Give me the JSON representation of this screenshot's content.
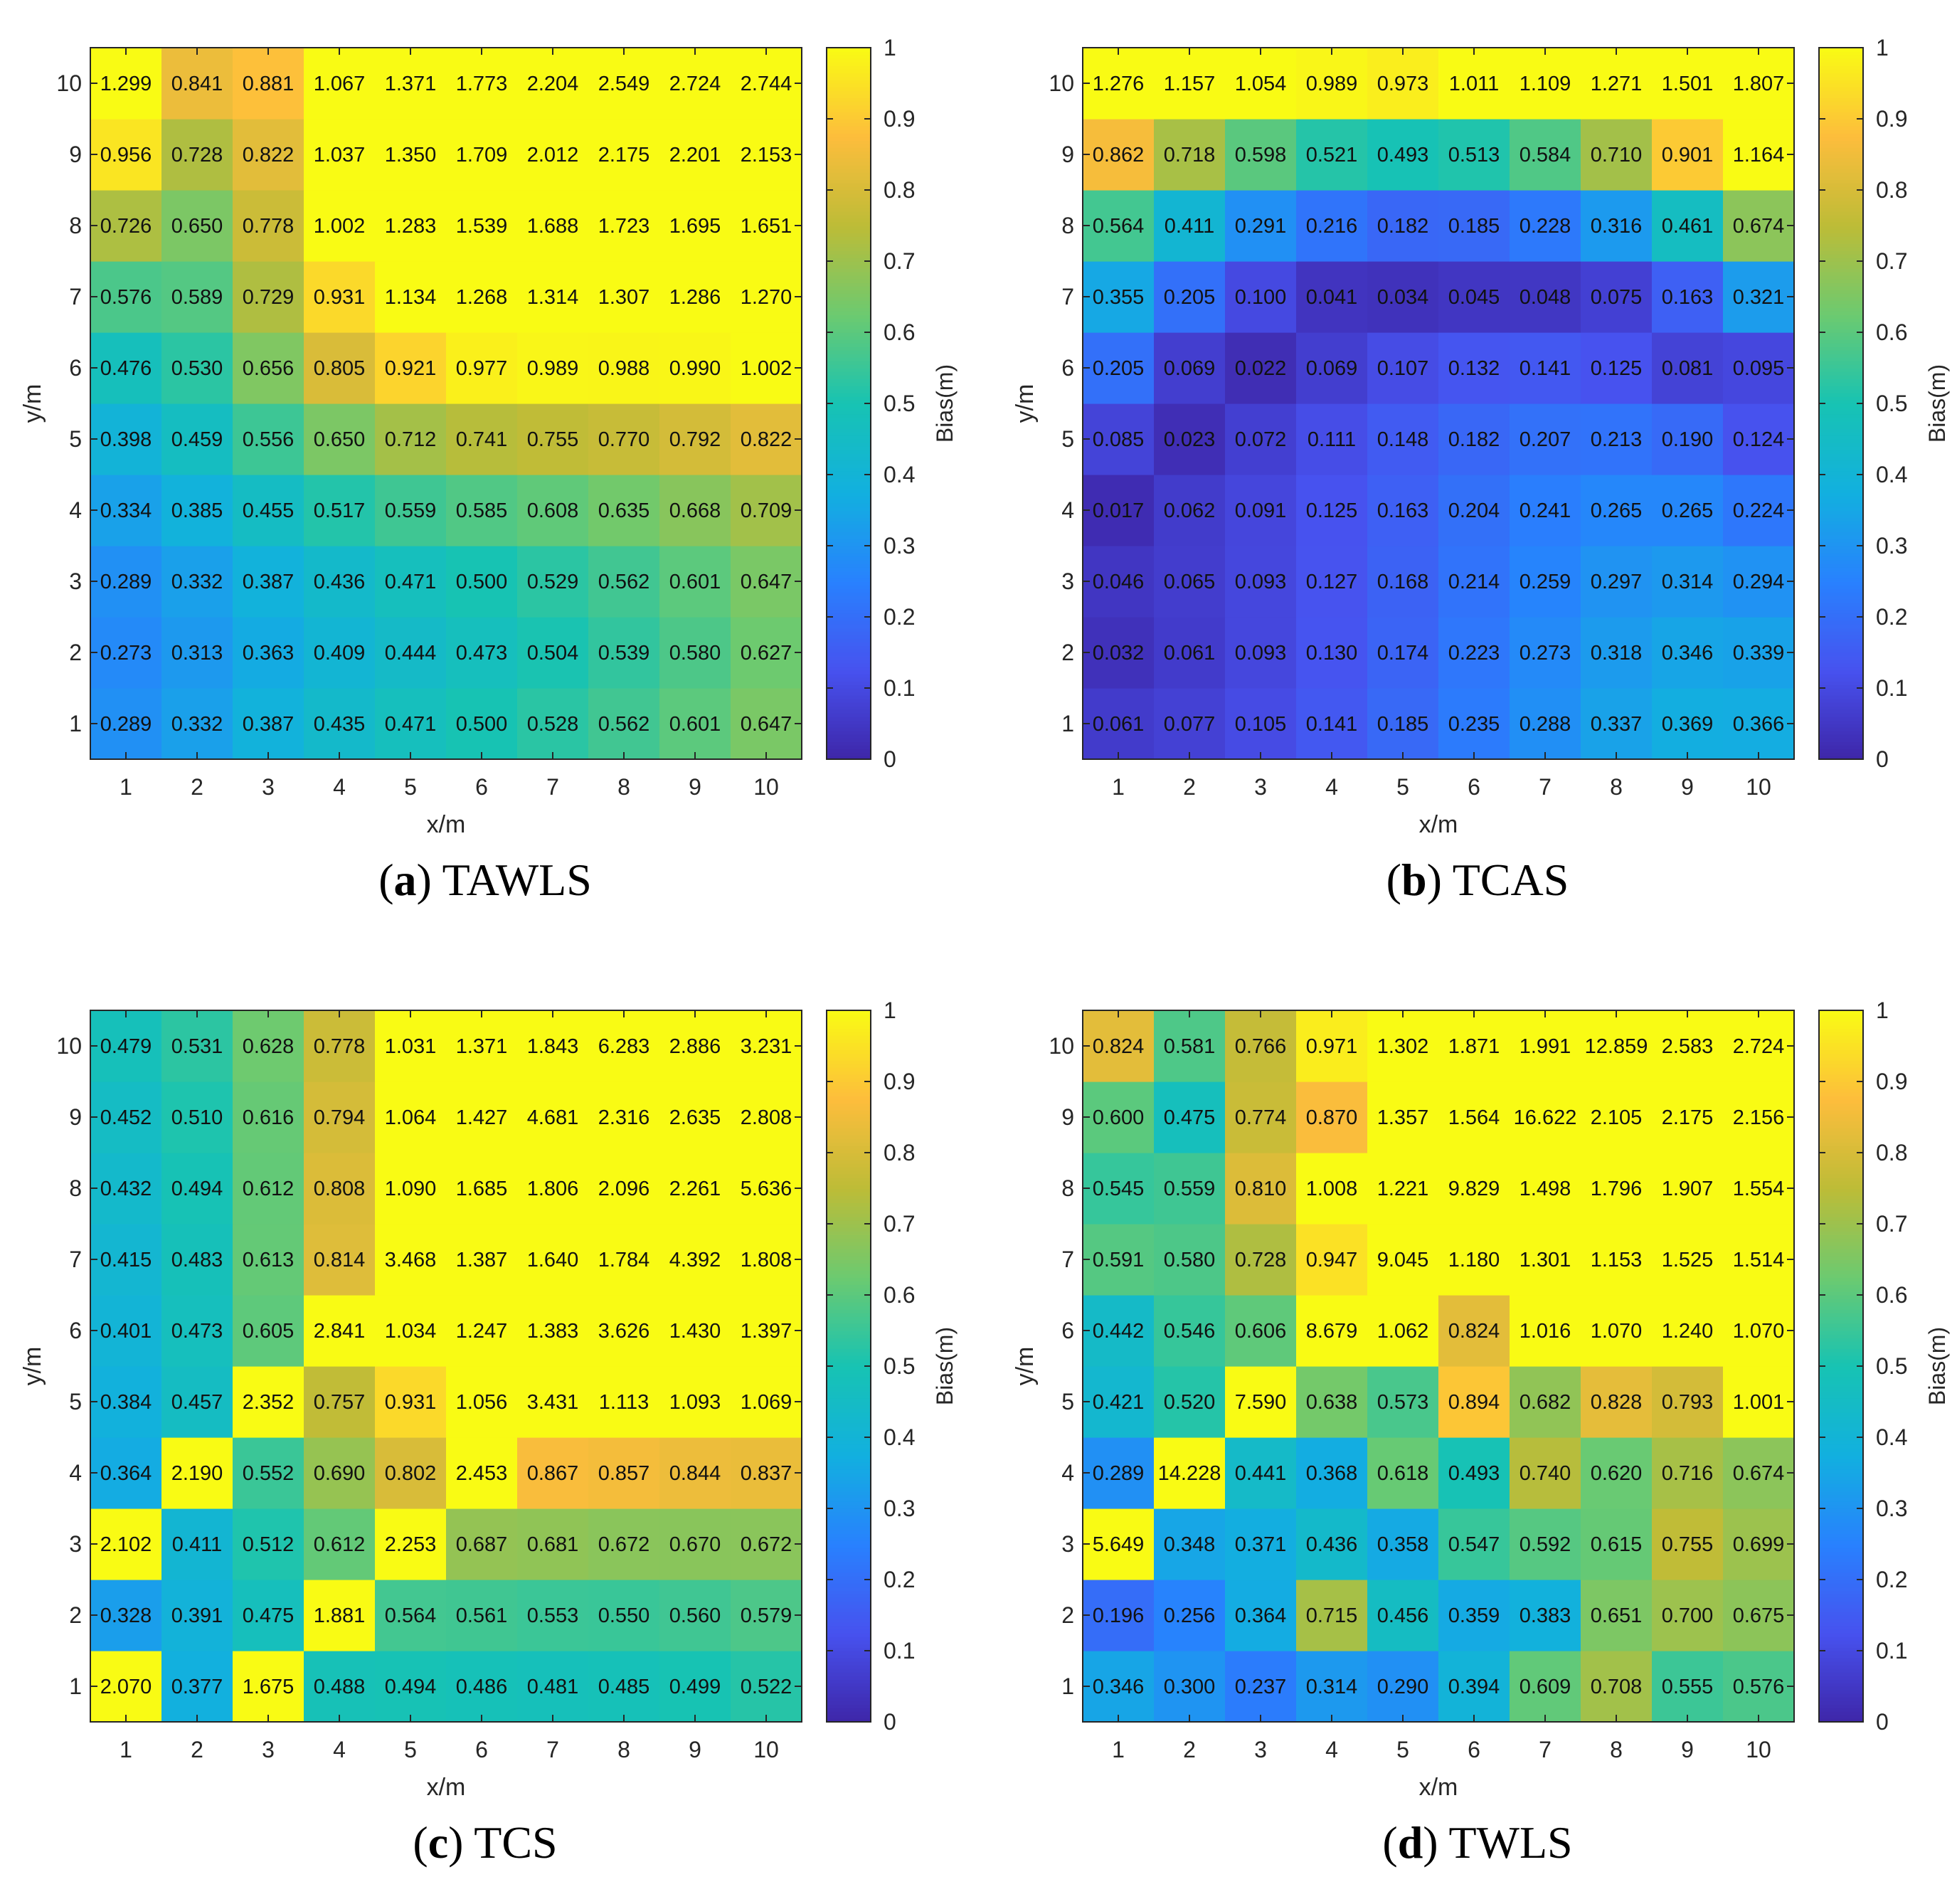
{
  "figure_title": "",
  "chart_data": [
    {
      "type": "heatmap",
      "caption_letter": "a",
      "caption_name": "TAWLS",
      "xlabel": "x/m",
      "ylabel": "y/m",
      "colorbar_label": "Bias(m)",
      "x": [
        1,
        2,
        3,
        4,
        5,
        6,
        7,
        8,
        9,
        10
      ],
      "y": [
        1,
        2,
        3,
        4,
        5,
        6,
        7,
        8,
        9,
        10
      ],
      "clim": [
        0,
        1
      ],
      "colorbar_ticks": [
        0,
        0.1,
        0.2,
        0.3,
        0.4,
        0.5,
        0.6,
        0.7,
        0.8,
        0.9,
        1
      ],
      "colormap": "parula",
      "values": [
        [
          "0.289",
          "0.332",
          "0.387",
          "0.435",
          "0.471",
          "0.500",
          "0.528",
          "0.562",
          "0.601",
          "0.647"
        ],
        [
          "0.273",
          "0.313",
          "0.363",
          "0.409",
          "0.444",
          "0.473",
          "0.504",
          "0.539",
          "0.580",
          "0.627"
        ],
        [
          "0.289",
          "0.332",
          "0.387",
          "0.436",
          "0.471",
          "0.500",
          "0.529",
          "0.562",
          "0.601",
          "0.647"
        ],
        [
          "0.334",
          "0.385",
          "0.455",
          "0.517",
          "0.559",
          "0.585",
          "0.608",
          "0.635",
          "0.668",
          "0.709"
        ],
        [
          "0.398",
          "0.459",
          "0.556",
          "0.650",
          "0.712",
          "0.741",
          "0.755",
          "0.770",
          "0.792",
          "0.822"
        ],
        [
          "0.476",
          "0.530",
          "0.656",
          "0.805",
          "0.921",
          "0.977",
          "0.989",
          "0.988",
          "0.990",
          "1.002"
        ],
        [
          "0.576",
          "0.589",
          "0.729",
          "0.931",
          "1.134",
          "1.268",
          "1.314",
          "1.307",
          "1.286",
          "1.270"
        ],
        [
          "0.726",
          "0.650",
          "0.778",
          "1.002",
          "1.283",
          "1.539",
          "1.688",
          "1.723",
          "1.695",
          "1.651"
        ],
        [
          "0.956",
          "0.728",
          "0.822",
          "1.037",
          "1.350",
          "1.709",
          "2.012",
          "2.175",
          "2.201",
          "2.153"
        ],
        [
          "1.299",
          "0.841",
          "0.881",
          "1.067",
          "1.371",
          "1.773",
          "2.204",
          "2.549",
          "2.724",
          "2.744"
        ]
      ]
    },
    {
      "type": "heatmap",
      "caption_letter": "b",
      "caption_name": "TCAS",
      "xlabel": "x/m",
      "ylabel": "y/m",
      "colorbar_label": "Bias(m)",
      "x": [
        1,
        2,
        3,
        4,
        5,
        6,
        7,
        8,
        9,
        10
      ],
      "y": [
        1,
        2,
        3,
        4,
        5,
        6,
        7,
        8,
        9,
        10
      ],
      "clim": [
        0,
        1
      ],
      "colorbar_ticks": [
        0,
        0.1,
        0.2,
        0.3,
        0.4,
        0.5,
        0.6,
        0.7,
        0.8,
        0.9,
        1
      ],
      "colormap": "parula",
      "values": [
        [
          "0.061",
          "0.077",
          "0.105",
          "0.141",
          "0.185",
          "0.235",
          "0.288",
          "0.337",
          "0.369",
          "0.366"
        ],
        [
          "0.032",
          "0.061",
          "0.093",
          "0.130",
          "0.174",
          "0.223",
          "0.273",
          "0.318",
          "0.346",
          "0.339"
        ],
        [
          "0.046",
          "0.065",
          "0.093",
          "0.127",
          "0.168",
          "0.214",
          "0.259",
          "0.297",
          "0.314",
          "0.294"
        ],
        [
          "0.017",
          "0.062",
          "0.091",
          "0.125",
          "0.163",
          "0.204",
          "0.241",
          "0.265",
          "0.265",
          "0.224"
        ],
        [
          "0.085",
          "0.023",
          "0.072",
          "0.111",
          "0.148",
          "0.182",
          "0.207",
          "0.213",
          "0.190",
          "0.124"
        ],
        [
          "0.205",
          "0.069",
          "0.022",
          "0.069",
          "0.107",
          "0.132",
          "0.141",
          "0.125",
          "0.081",
          "0.095"
        ],
        [
          "0.355",
          "0.205",
          "0.100",
          "0.041",
          "0.034",
          "0.045",
          "0.048",
          "0.075",
          "0.163",
          "0.321"
        ],
        [
          "0.564",
          "0.411",
          "0.291",
          "0.216",
          "0.182",
          "0.185",
          "0.228",
          "0.316",
          "0.461",
          "0.674"
        ],
        [
          "0.862",
          "0.718",
          "0.598",
          "0.521",
          "0.493",
          "0.513",
          "0.584",
          "0.710",
          "0.901",
          "1.164"
        ],
        [
          "1.276",
          "1.157",
          "1.054",
          "0.989",
          "0.973",
          "1.011",
          "1.109",
          "1.271",
          "1.501",
          "1.807"
        ]
      ]
    },
    {
      "type": "heatmap",
      "caption_letter": "c",
      "caption_name": "TCS",
      "xlabel": "x/m",
      "ylabel": "y/m",
      "colorbar_label": "Bias(m)",
      "x": [
        1,
        2,
        3,
        4,
        5,
        6,
        7,
        8,
        9,
        10
      ],
      "y": [
        1,
        2,
        3,
        4,
        5,
        6,
        7,
        8,
        9,
        10
      ],
      "clim": [
        0,
        1
      ],
      "colorbar_ticks": [
        0,
        0.1,
        0.2,
        0.3,
        0.4,
        0.5,
        0.6,
        0.7,
        0.8,
        0.9,
        1
      ],
      "colormap": "parula",
      "values": [
        [
          "2.070",
          "0.377",
          "1.675",
          "0.488",
          "0.494",
          "0.486",
          "0.481",
          "0.485",
          "0.499",
          "0.522"
        ],
        [
          "0.328",
          "0.391",
          "0.475",
          "1.881",
          "0.564",
          "0.561",
          "0.553",
          "0.550",
          "0.560",
          "0.579"
        ],
        [
          "2.102",
          "0.411",
          "0.512",
          "0.612",
          "2.253",
          "0.687",
          "0.681",
          "0.672",
          "0.670",
          "0.672"
        ],
        [
          "0.364",
          "2.190",
          "0.552",
          "0.690",
          "0.802",
          "2.453",
          "0.867",
          "0.857",
          "0.844",
          "0.837"
        ],
        [
          "0.384",
          "0.457",
          "2.352",
          "0.757",
          "0.931",
          "1.056",
          "3.431",
          "1.113",
          "1.093",
          "1.069"
        ],
        [
          "0.401",
          "0.473",
          "0.605",
          "2.841",
          "1.034",
          "1.247",
          "1.383",
          "3.626",
          "1.430",
          "1.397"
        ],
        [
          "0.415",
          "0.483",
          "0.613",
          "0.814",
          "3.468",
          "1.387",
          "1.640",
          "1.784",
          "4.392",
          "1.808"
        ],
        [
          "0.432",
          "0.494",
          "0.612",
          "0.808",
          "1.090",
          "1.685",
          "1.806",
          "2.096",
          "2.261",
          "5.636"
        ],
        [
          "0.452",
          "0.510",
          "0.616",
          "0.794",
          "1.064",
          "1.427",
          "4.681",
          "2.316",
          "2.635",
          "2.808"
        ],
        [
          "0.479",
          "0.531",
          "0.628",
          "0.778",
          "1.031",
          "1.371",
          "1.843",
          "6.283",
          "2.886",
          "3.231"
        ]
      ]
    },
    {
      "type": "heatmap",
      "caption_letter": "d",
      "caption_name": "TWLS",
      "xlabel": "x/m",
      "ylabel": "y/m",
      "colorbar_label": "Bias(m)",
      "x": [
        1,
        2,
        3,
        4,
        5,
        6,
        7,
        8,
        9,
        10
      ],
      "y": [
        1,
        2,
        3,
        4,
        5,
        6,
        7,
        8,
        9,
        10
      ],
      "clim": [
        0,
        1
      ],
      "colorbar_ticks": [
        0,
        0.1,
        0.2,
        0.3,
        0.4,
        0.5,
        0.6,
        0.7,
        0.8,
        0.9,
        1
      ],
      "colormap": "parula",
      "values": [
        [
          "0.346",
          "0.300",
          "0.237",
          "0.314",
          "0.290",
          "0.394",
          "0.609",
          "0.708",
          "0.555",
          "0.576"
        ],
        [
          "0.196",
          "0.256",
          "0.364",
          "0.715",
          "0.456",
          "0.359",
          "0.383",
          "0.651",
          "0.700",
          "0.675"
        ],
        [
          "5.649",
          "0.348",
          "0.371",
          "0.436",
          "0.358",
          "0.547",
          "0.592",
          "0.615",
          "0.755",
          "0.699"
        ],
        [
          "0.289",
          "14.228",
          "0.441",
          "0.368",
          "0.618",
          "0.493",
          "0.740",
          "0.620",
          "0.716",
          "0.674"
        ],
        [
          "0.421",
          "0.520",
          "7.590",
          "0.638",
          "0.573",
          "0.894",
          "0.682",
          "0.828",
          "0.793",
          "1.001"
        ],
        [
          "0.442",
          "0.546",
          "0.606",
          "8.679",
          "1.062",
          "0.824",
          "1.016",
          "1.070",
          "1.240",
          "1.070"
        ],
        [
          "0.591",
          "0.580",
          "0.728",
          "0.947",
          "9.045",
          "1.180",
          "1.301",
          "1.153",
          "1.525",
          "1.514"
        ],
        [
          "0.545",
          "0.559",
          "0.810",
          "1.008",
          "1.221",
          "9.829",
          "1.498",
          "1.796",
          "1.907",
          "1.554"
        ],
        [
          "0.600",
          "0.475",
          "0.774",
          "0.870",
          "1.357",
          "1.564",
          "16.622",
          "2.105",
          "2.175",
          "2.156"
        ],
        [
          "0.824",
          "0.581",
          "0.766",
          "0.971",
          "1.302",
          "1.871",
          "1.991",
          "12.859",
          "2.583",
          "2.724"
        ]
      ]
    }
  ]
}
